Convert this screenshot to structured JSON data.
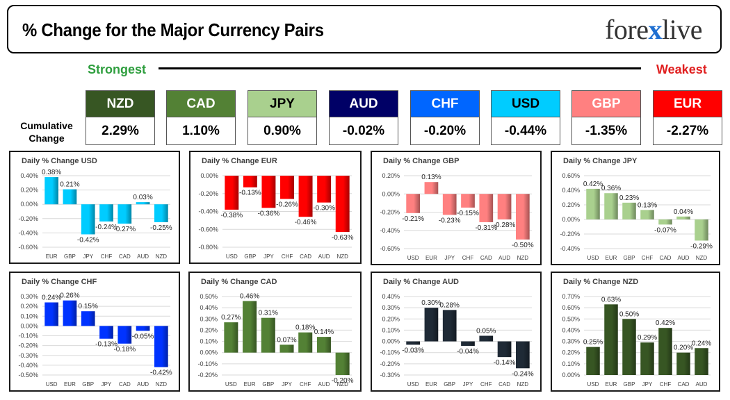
{
  "header": {
    "title": "% Change for the Major Currency Pairs",
    "logo_left": "fore",
    "logo_x": "x",
    "logo_right": "live"
  },
  "strength_scale": {
    "strongest": "Strongest",
    "weakest": "Weakest"
  },
  "cumulative_label_line1": "Cumulative",
  "cumulative_label_line2": "Change",
  "currencies": [
    {
      "name": "NZD",
      "value": "2.29%",
      "color": "#375623",
      "text": "#ffffff"
    },
    {
      "name": "CAD",
      "value": "1.10%",
      "color": "#538135",
      "text": "#ffffff"
    },
    {
      "name": "JPY",
      "value": "0.90%",
      "color": "#a9d08e",
      "text": "#000000"
    },
    {
      "name": "AUD",
      "value": "-0.02%",
      "color": "#000066",
      "text": "#ffffff"
    },
    {
      "name": "CHF",
      "value": "-0.20%",
      "color": "#0066ff",
      "text": "#ffffff"
    },
    {
      "name": "USD",
      "value": "-0.44%",
      "color": "#00ccff",
      "text": "#000000"
    },
    {
      "name": "GBP",
      "value": "-1.35%",
      "color": "#ff8080",
      "text": "#ffffff"
    },
    {
      "name": "EUR",
      "value": "-2.27%",
      "color": "#ff0000",
      "text": "#ffffff"
    }
  ],
  "chart_data": [
    {
      "type": "bar",
      "title": "Daily % Change USD",
      "categories": [
        "EUR",
        "GBP",
        "JPY",
        "CHF",
        "CAD",
        "AUD",
        "NZD"
      ],
      "values": [
        0.38,
        0.21,
        -0.42,
        -0.24,
        -0.27,
        0.03,
        -0.25
      ],
      "labels": [
        "0.38%",
        "0.21%",
        "-0.42%",
        "-0.24%",
        "-0.27%",
        "0.03%",
        "-0.25%"
      ],
      "yticks": [
        "0.40%",
        "0.20%",
        "0.00%",
        "-0.20%",
        "-0.40%",
        "-0.60%"
      ],
      "ylim": [
        -0.6,
        0.4
      ],
      "tick_step": 0.2,
      "color": "#00ccff"
    },
    {
      "type": "bar",
      "title": "Daily % Change EUR",
      "categories": [
        "USD",
        "GBP",
        "JPY",
        "CHF",
        "CAD",
        "AUD",
        "NZD"
      ],
      "values": [
        -0.38,
        -0.13,
        -0.36,
        -0.26,
        -0.46,
        -0.3,
        -0.63
      ],
      "labels": [
        "-0.38%",
        "-0.13%",
        "-0.36%",
        "-0.26%",
        "-0.46%",
        "-0.30%",
        "-0.63%"
      ],
      "yticks": [
        "0.00%",
        "-0.20%",
        "-0.40%",
        "-0.60%",
        "-0.80%"
      ],
      "ylim": [
        -0.8,
        0.0
      ],
      "tick_step": 0.2,
      "color": "#ff0000"
    },
    {
      "type": "bar",
      "title": "Daily % Change GBP",
      "categories": [
        "USD",
        "EUR",
        "JPY",
        "CHF",
        "CAD",
        "AUD",
        "NZD"
      ],
      "values": [
        -0.21,
        0.13,
        -0.23,
        -0.15,
        -0.31,
        -0.28,
        -0.5
      ],
      "labels": [
        "-0.21%",
        "0.13%",
        "-0.23%",
        "-0.15%",
        "-0.31%",
        "-0.28%",
        "-0.50%"
      ],
      "yticks": [
        "0.20%",
        "0.00%",
        "-0.20%",
        "-0.40%",
        "-0.60%"
      ],
      "ylim": [
        -0.6,
        0.2
      ],
      "tick_step": 0.2,
      "color": "#ff8080"
    },
    {
      "type": "bar",
      "title": "Daily % Change JPY",
      "categories": [
        "USD",
        "EUR",
        "GBP",
        "CHF",
        "CAD",
        "AUD",
        "NZD"
      ],
      "values": [
        0.42,
        0.36,
        0.23,
        0.13,
        -0.07,
        0.04,
        -0.29
      ],
      "labels": [
        "0.42%",
        "0.36%",
        "0.23%",
        "0.13%",
        "-0.07%",
        "0.04%",
        "-0.29%"
      ],
      "yticks": [
        "0.60%",
        "0.40%",
        "0.20%",
        "0.00%",
        "-0.20%",
        "-0.40%"
      ],
      "ylim": [
        -0.4,
        0.6
      ],
      "tick_step": 0.2,
      "color": "#a9d08e"
    },
    {
      "type": "bar",
      "title": "Daily % Change CHF",
      "categories": [
        "USD",
        "EUR",
        "GBP",
        "JPY",
        "CAD",
        "AUD",
        "NZD"
      ],
      "values": [
        0.24,
        0.26,
        0.15,
        -0.13,
        -0.18,
        -0.05,
        -0.42
      ],
      "labels": [
        "0.24%",
        "0.26%",
        "0.15%",
        "-0.13%",
        "-0.18%",
        "-0.05%",
        "-0.42%"
      ],
      "yticks": [
        "0.30%",
        "0.20%",
        "0.10%",
        "0.00%",
        "-0.10%",
        "-0.20%",
        "-0.30%",
        "-0.40%",
        "-0.50%"
      ],
      "ylim": [
        -0.5,
        0.3
      ],
      "tick_step": 0.1,
      "color": "#0033ff"
    },
    {
      "type": "bar",
      "title": "Daily % Change CAD",
      "categories": [
        "USD",
        "EUR",
        "GBP",
        "JPY",
        "CHF",
        "AUD",
        "NZD"
      ],
      "values": [
        0.27,
        0.46,
        0.31,
        0.07,
        0.18,
        0.14,
        -0.2
      ],
      "labels": [
        "0.27%",
        "0.46%",
        "0.31%",
        "0.07%",
        "0.18%",
        "0.14%",
        "-0.20%"
      ],
      "yticks": [
        "0.50%",
        "0.40%",
        "0.30%",
        "0.20%",
        "0.10%",
        "0.00%",
        "-0.10%",
        "-0.20%"
      ],
      "ylim": [
        -0.2,
        0.5
      ],
      "tick_step": 0.1,
      "color": "#538135"
    },
    {
      "type": "bar",
      "title": "Daily % Change AUD",
      "categories": [
        "USD",
        "EUR",
        "GBP",
        "JPY",
        "CHF",
        "CAD",
        "NZD"
      ],
      "values": [
        -0.03,
        0.3,
        0.28,
        -0.04,
        0.05,
        -0.14,
        -0.24
      ],
      "labels": [
        "-0.03%",
        "0.30%",
        "0.28%",
        "-0.04%",
        "0.05%",
        "-0.14%",
        "-0.24%"
      ],
      "yticks": [
        "0.40%",
        "0.30%",
        "0.20%",
        "0.10%",
        "0.00%",
        "-0.10%",
        "-0.20%",
        "-0.30%"
      ],
      "ylim": [
        -0.3,
        0.4
      ],
      "tick_step": 0.1,
      "color": "#1f2a36"
    },
    {
      "type": "bar",
      "title": "Daily % Change NZD",
      "categories": [
        "USD",
        "EUR",
        "GBP",
        "JPY",
        "CHF",
        "CAD",
        "AUD"
      ],
      "values": [
        0.25,
        0.63,
        0.5,
        0.29,
        0.42,
        0.2,
        0.24
      ],
      "labels": [
        "0.25%",
        "0.63%",
        "0.50%",
        "0.29%",
        "0.42%",
        "0.20%",
        "0.24%"
      ],
      "yticks": [
        "0.70%",
        "0.60%",
        "0.50%",
        "0.40%",
        "0.30%",
        "0.20%",
        "0.10%",
        "0.00%"
      ],
      "ylim": [
        0.0,
        0.7
      ],
      "tick_step": 0.1,
      "color": "#375623"
    }
  ]
}
